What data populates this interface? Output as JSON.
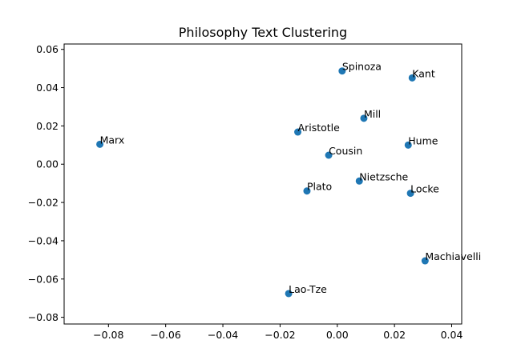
{
  "chart_data": {
    "type": "scatter",
    "title": "Philosophy Text Clustering",
    "xlabel": "",
    "ylabel": "",
    "xlim": [
      -0.0955,
      0.0435
    ],
    "ylim": [
      -0.0835,
      0.0628
    ],
    "xticks": [
      -0.08,
      -0.06,
      -0.04,
      -0.02,
      0.0,
      0.02,
      0.04
    ],
    "xtick_labels": [
      "−0.08",
      "−0.06",
      "−0.04",
      "−0.02",
      "0.00",
      "0.02",
      "0.04"
    ],
    "yticks": [
      -0.08,
      -0.06,
      -0.04,
      -0.02,
      0.0,
      0.02,
      0.04,
      0.06
    ],
    "ytick_labels": [
      "−0.08",
      "−0.06",
      "−0.04",
      "−0.02",
      "0.00",
      "0.02",
      "0.04",
      "0.06"
    ],
    "grid": false,
    "marker_color": "#1f77b4",
    "points": [
      {
        "label": "Spinoza",
        "x": 0.0017,
        "y": 0.0487
      },
      {
        "label": "Kant",
        "x": 0.0262,
        "y": 0.0451
      },
      {
        "label": "Mill",
        "x": 0.0093,
        "y": 0.024
      },
      {
        "label": "Aristotle",
        "x": -0.0138,
        "y": 0.0168
      },
      {
        "label": "Marx",
        "x": -0.083,
        "y": 0.0104
      },
      {
        "label": "Hume",
        "x": 0.0248,
        "y": 0.01
      },
      {
        "label": "Cousin",
        "x": -0.003,
        "y": 0.0047
      },
      {
        "label": "Nietzsche",
        "x": 0.0077,
        "y": -0.0088
      },
      {
        "label": "Plato",
        "x": -0.0106,
        "y": -0.014
      },
      {
        "label": "Locke",
        "x": 0.0256,
        "y": -0.0152
      },
      {
        "label": "Machiavelli",
        "x": 0.0307,
        "y": -0.0505
      },
      {
        "label": "Lao-Tze",
        "x": -0.017,
        "y": -0.0676
      }
    ]
  }
}
